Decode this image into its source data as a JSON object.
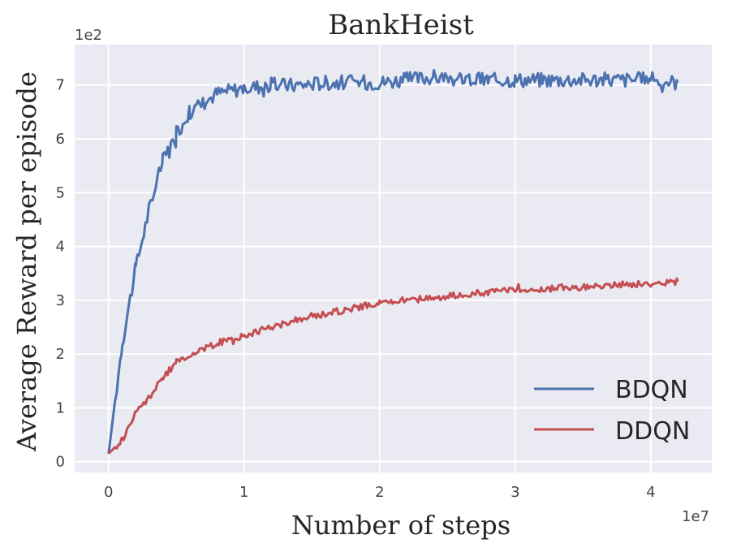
{
  "chart_data": {
    "type": "line",
    "title": "BankHeist",
    "xlabel": "Number of steps",
    "ylabel": "Average Reward per episode",
    "x_scale_label": "1e7",
    "y_scale_label": "1e2",
    "xlim": [
      -0.25,
      4.45
    ],
    "ylim": [
      -0.2,
      7.75
    ],
    "x_ticks": [
      0,
      1,
      2,
      3,
      4
    ],
    "y_ticks": [
      0,
      1,
      2,
      3,
      4,
      5,
      6,
      7
    ],
    "x_tick_labels": [
      "0",
      "1",
      "2",
      "3",
      "4"
    ],
    "y_tick_labels": [
      "0",
      "1",
      "2",
      "3",
      "4",
      "5",
      "6",
      "7"
    ],
    "grid": true,
    "legend_position": "lower-right",
    "background_color": "#EAEAF2",
    "series": [
      {
        "name": "BDQN",
        "color": "#4C72B0",
        "x": [
          0,
          0.1,
          0.2,
          0.3,
          0.4,
          0.5,
          0.6,
          0.8,
          1.0,
          1.2,
          1.4,
          1.6,
          1.8,
          2.0,
          2.2,
          2.4,
          2.6,
          2.8,
          3.0,
          3.2,
          3.4,
          3.6,
          3.8,
          4.0,
          4.2
        ],
        "y": [
          0.15,
          2.2,
          3.6,
          4.7,
          5.6,
          6.1,
          6.5,
          6.85,
          6.95,
          7.0,
          7.0,
          7.05,
          7.05,
          7.05,
          7.1,
          7.15,
          7.1,
          7.1,
          7.1,
          7.1,
          7.1,
          7.1,
          7.1,
          7.1,
          7.05
        ]
      },
      {
        "name": "DDQN",
        "color": "#C44E52",
        "x": [
          0,
          0.1,
          0.2,
          0.3,
          0.4,
          0.5,
          0.6,
          0.8,
          1.0,
          1.2,
          1.4,
          1.6,
          1.8,
          2.0,
          2.2,
          2.4,
          2.6,
          2.8,
          3.0,
          3.2,
          3.4,
          3.6,
          3.8,
          4.0,
          4.2
        ],
        "y": [
          0.15,
          0.4,
          0.9,
          1.2,
          1.55,
          1.85,
          2.0,
          2.2,
          2.35,
          2.5,
          2.65,
          2.75,
          2.85,
          2.95,
          3.0,
          3.05,
          3.1,
          3.15,
          3.2,
          3.2,
          3.25,
          3.25,
          3.3,
          3.3,
          3.35
        ]
      }
    ]
  }
}
